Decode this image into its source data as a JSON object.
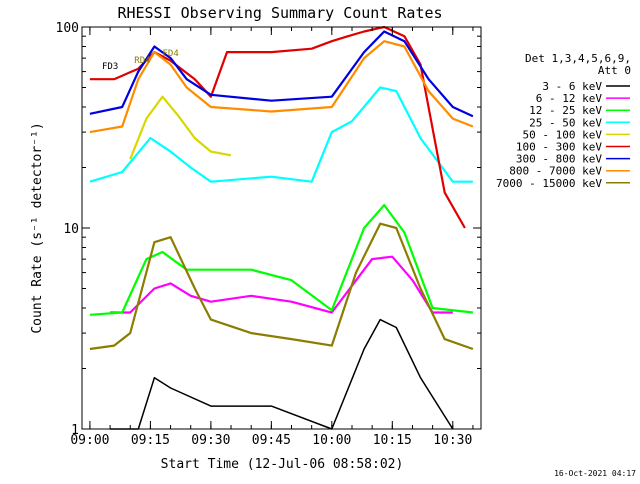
{
  "chart_data": {
    "type": "line",
    "title": "RHESSI Observing Summary Count Rates",
    "xlabel": "Start Time (12-Jul-06 08:58:02)",
    "ylabel": "Count Rate (s⁻¹ detector⁻¹)",
    "y_scale": "log",
    "ylim": [
      1,
      100
    ],
    "xlim": [
      "08:58:02",
      "10:37:00"
    ],
    "x_ticks": [
      "09:00",
      "09:15",
      "09:30",
      "09:45",
      "10:00",
      "10:15",
      "10:30"
    ],
    "y_ticks": [
      "1",
      "10",
      "100"
    ],
    "legend_header": [
      "Det 1,3,4,5,6,9,",
      "Att 0"
    ],
    "legend_position": "right",
    "annotations": [
      "FD4",
      "RD4",
      "FD3"
    ],
    "footer_date": "16-Oct-2021 04:17",
    "colors": {
      "3 - 6 keV": "#000000",
      "6 - 12 keV": "#ff00ff",
      "12 - 25 keV": "#00ff00",
      "25 - 50 keV": "#00ffff",
      "50 - 100 keV": "#d8d800",
      "100 - 300 keV": "#e00000",
      "300 - 800 keV": "#0000e0",
      "800 - 7000 keV": "#ff8c00",
      "7000 - 15000 keV": "#8b7d00"
    },
    "series": [
      {
        "name": "3 - 6 keV",
        "x": [
          "09:05",
          "09:12",
          "09:16",
          "09:20",
          "09:30",
          "09:45",
          "10:00",
          "10:08",
          "10:12",
          "10:16",
          "10:22",
          "10:30"
        ],
        "values": [
          1.0,
          1.0,
          1.8,
          1.6,
          1.3,
          1.3,
          1.0,
          2.5,
          3.5,
          3.2,
          1.8,
          1.0
        ]
      },
      {
        "name": "6 - 12 keV",
        "x": [
          "09:05",
          "09:10",
          "09:16",
          "09:20",
          "09:25",
          "09:30",
          "09:40",
          "09:50",
          "10:00",
          "10:10",
          "10:15",
          "10:20",
          "10:25",
          "10:30"
        ],
        "values": [
          3.8,
          3.8,
          5.0,
          5.3,
          4.6,
          4.3,
          4.6,
          4.3,
          3.8,
          7.0,
          7.2,
          5.5,
          3.8,
          3.8
        ]
      },
      {
        "name": "12 - 25 keV",
        "x": [
          "09:00",
          "09:08",
          "09:14",
          "09:18",
          "09:24",
          "09:30",
          "09:40",
          "09:50",
          "10:00",
          "10:08",
          "10:13",
          "10:18",
          "10:25",
          "10:35"
        ],
        "values": [
          3.7,
          3.8,
          7.0,
          7.6,
          6.2,
          6.2,
          6.2,
          5.5,
          3.9,
          10.0,
          13.0,
          9.5,
          4.0,
          3.8
        ]
      },
      {
        "name": "25 - 50 keV",
        "x": [
          "09:00",
          "09:08",
          "09:15",
          "09:20",
          "09:25",
          "09:30",
          "09:45",
          "09:55",
          "10:00",
          "10:05",
          "10:12",
          "10:16",
          "10:22",
          "10:30",
          "10:35"
        ],
        "values": [
          17,
          19,
          28,
          24,
          20,
          17,
          18,
          17,
          30,
          34,
          50,
          48,
          28,
          17,
          17
        ]
      },
      {
        "name": "50 - 100 keV",
        "x": [
          "09:10",
          "09:14",
          "09:18",
          "09:22",
          "09:26",
          "09:30",
          "09:35"
        ],
        "values": [
          22,
          35,
          45,
          36,
          28,
          24,
          23
        ]
      },
      {
        "name": "100 - 300 keV",
        "x": [
          "09:00",
          "09:06",
          "09:12",
          "09:16",
          "09:20",
          "09:26",
          "09:30",
          "09:34",
          "09:45",
          "09:55",
          "10:00",
          "10:04",
          "10:08",
          "10:13",
          "10:18",
          "10:22",
          "10:28",
          "10:33"
        ],
        "values": [
          55,
          55,
          62,
          75,
          68,
          55,
          45,
          75,
          75,
          78,
          85,
          90,
          95,
          100,
          90,
          65,
          15,
          10
        ]
      },
      {
        "name": "300 - 800 keV",
        "x": [
          "09:00",
          "09:08",
          "09:12",
          "09:16",
          "09:20",
          "09:24",
          "09:30",
          "09:45",
          "10:00",
          "10:08",
          "10:13",
          "10:18",
          "10:24",
          "10:30",
          "10:35"
        ],
        "values": [
          37,
          40,
          60,
          80,
          70,
          55,
          46,
          43,
          45,
          75,
          95,
          85,
          55,
          40,
          36
        ]
      },
      {
        "name": "800 - 7000 keV",
        "x": [
          "09:00",
          "09:08",
          "09:12",
          "09:16",
          "09:20",
          "09:24",
          "09:30",
          "09:45",
          "10:00",
          "10:08",
          "10:13",
          "10:18",
          "10:24",
          "10:30",
          "10:35"
        ],
        "values": [
          30,
          32,
          55,
          75,
          65,
          50,
          40,
          38,
          40,
          70,
          85,
          80,
          48,
          35,
          32
        ]
      },
      {
        "name": "7000 - 15000 keV",
        "x": [
          "09:00",
          "09:06",
          "09:10",
          "09:16",
          "09:20",
          "09:26",
          "09:30",
          "09:40",
          "09:50",
          "10:00",
          "10:06",
          "10:12",
          "10:16",
          "10:22",
          "10:28",
          "10:35"
        ],
        "values": [
          2.5,
          2.6,
          3.0,
          8.5,
          9.0,
          5.0,
          3.5,
          3.0,
          2.8,
          2.6,
          6.0,
          10.5,
          10.0,
          5.0,
          2.8,
          2.5
        ]
      }
    ]
  }
}
